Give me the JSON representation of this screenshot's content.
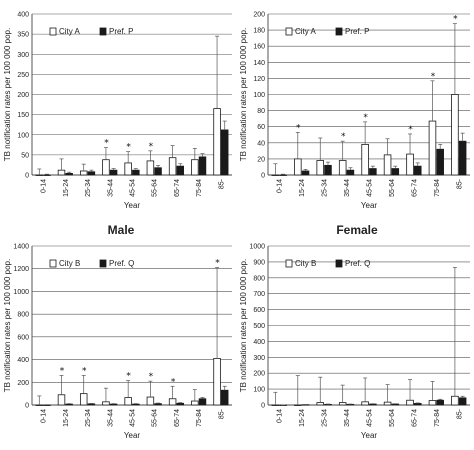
{
  "sex_labels": {
    "male": "Male",
    "female": "Female"
  },
  "chart_data": [
    {
      "id": "male-top",
      "type": "bar",
      "categories": [
        "0-14",
        "15-24",
        "25-34",
        "35-44",
        "45-54",
        "55-64",
        "65-74",
        "75-84",
        "85-"
      ],
      "ylim": [
        0,
        400
      ],
      "yticks": [
        0,
        50,
        100,
        150,
        200,
        250,
        300,
        350,
        400
      ],
      "xlabel": "Year",
      "ylabel": "TB notification rates per 100 000 pop.",
      "grid": true,
      "legend_position": "top-left",
      "series": [
        {
          "name": "City A",
          "style": "open",
          "values": [
            0,
            12,
            10,
            38,
            30,
            35,
            43,
            38,
            165
          ],
          "err": [
            15,
            28,
            17,
            30,
            28,
            25,
            30,
            28,
            180
          ]
        },
        {
          "name": "Pref. P",
          "style": "filled",
          "values": [
            0,
            4,
            8,
            12,
            12,
            18,
            22,
            45,
            112
          ],
          "err": [
            2,
            3,
            4,
            4,
            4,
            6,
            6,
            8,
            22
          ]
        }
      ],
      "significant": [
        false,
        false,
        false,
        true,
        true,
        true,
        false,
        false,
        false
      ]
    },
    {
      "id": "female-top",
      "type": "bar",
      "categories": [
        "0-14",
        "15-24",
        "25-34",
        "35-44",
        "45-54",
        "55-64",
        "65-74",
        "75-84",
        "85-"
      ],
      "ylim": [
        0,
        200
      ],
      "yticks": [
        0,
        20,
        40,
        60,
        80,
        100,
        120,
        140,
        160,
        180,
        200
      ],
      "xlabel": "Year",
      "ylabel": "TB notification rates per 100 000 pop.",
      "grid": true,
      "legend_position": "top-left",
      "series": [
        {
          "name": "City A",
          "style": "open",
          "values": [
            0,
            20,
            18,
            18,
            38,
            25,
            26,
            67,
            100
          ],
          "err": [
            14,
            33,
            28,
            24,
            28,
            20,
            25,
            50,
            88
          ]
        },
        {
          "name": "Pref. P",
          "style": "filled",
          "values": [
            0,
            5,
            12,
            6,
            8,
            8,
            11,
            32,
            42
          ],
          "err": [
            1,
            2,
            4,
            3,
            3,
            3,
            4,
            6,
            10
          ]
        }
      ],
      "significant": [
        false,
        true,
        false,
        true,
        true,
        false,
        true,
        true,
        true
      ]
    },
    {
      "id": "male-bottom",
      "type": "bar",
      "categories": [
        "0-14",
        "15-24",
        "25-34",
        "35-44",
        "45-54",
        "55-64",
        "65-74",
        "75-84",
        "85-"
      ],
      "ylim": [
        0,
        1400
      ],
      "yticks": [
        0,
        200,
        400,
        600,
        800,
        1000,
        1200,
        1400
      ],
      "xlabel": "Year",
      "ylabel": "TB notification rates per 100 000 pop.",
      "grid": true,
      "legend_position": "top-left",
      "series": [
        {
          "name": "City B",
          "style": "open",
          "values": [
            0,
            90,
            100,
            28,
            65,
            70,
            55,
            35,
            410
          ],
          "err": [
            80,
            170,
            160,
            120,
            150,
            140,
            110,
            100,
            800
          ]
        },
        {
          "name": "Pref. Q",
          "style": "filled",
          "values": [
            0,
            8,
            10,
            8,
            8,
            12,
            15,
            55,
            130
          ],
          "err": [
            3,
            4,
            4,
            4,
            4,
            5,
            6,
            12,
            35
          ]
        }
      ],
      "significant": [
        false,
        true,
        true,
        false,
        true,
        true,
        true,
        false,
        true
      ]
    },
    {
      "id": "female-bottom",
      "type": "bar",
      "categories": [
        "0-14",
        "15-24",
        "25-34",
        "35-44",
        "45-54",
        "55-64",
        "65-74",
        "75-84",
        "85-"
      ],
      "ylim": [
        0,
        1000
      ],
      "yticks": [
        0,
        100,
        200,
        300,
        400,
        500,
        600,
        700,
        800,
        900,
        1000
      ],
      "xlabel": "Year",
      "ylabel": "TB notification rates per 100 000 pop.",
      "grid": true,
      "legend_position": "top-left",
      "series": [
        {
          "name": "City B",
          "style": "open",
          "values": [
            0,
            0,
            15,
            15,
            20,
            18,
            30,
            28,
            55
          ],
          "err": [
            80,
            185,
            160,
            110,
            150,
            110,
            130,
            120,
            810
          ]
        },
        {
          "name": "Pref. Q",
          "style": "filled",
          "values": [
            0,
            2,
            4,
            4,
            6,
            6,
            10,
            30,
            45
          ],
          "err": [
            1,
            1,
            2,
            2,
            2,
            2,
            3,
            6,
            10
          ]
        }
      ],
      "significant": [
        false,
        false,
        false,
        false,
        false,
        false,
        false,
        false,
        false
      ]
    }
  ]
}
